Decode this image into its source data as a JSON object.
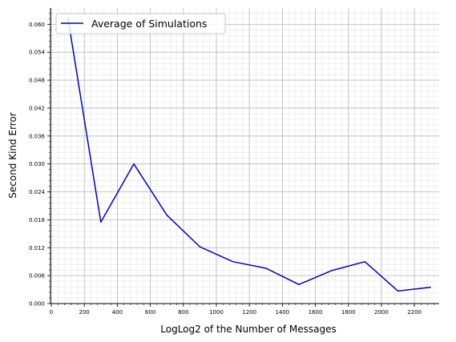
{
  "chart_data": {
    "type": "line",
    "xlabel": "LogLog2 of the Number of Messages",
    "ylabel": "Second Kind Error",
    "xlim": [
      -5,
      2350
    ],
    "ylim": [
      0,
      0.0635
    ],
    "x_ticks": [
      0,
      200,
      400,
      600,
      800,
      1000,
      1200,
      1400,
      1600,
      1800,
      2000,
      2200
    ],
    "x_tick_labels": [
      "0",
      "200",
      "400",
      "600",
      "800",
      "1000",
      "1200",
      "1400",
      "1600",
      "1800",
      "2000",
      "2200"
    ],
    "y_ticks": [
      0,
      0.006,
      0.012,
      0.018,
      0.024,
      0.03,
      0.036,
      0.042,
      0.048,
      0.054,
      0.06
    ],
    "y_tick_labels": [
      "0.000",
      "0.006",
      "0.012",
      "0.018",
      "0.024",
      "0.030",
      "0.036",
      "0.042",
      "0.048",
      "0.054",
      "0.060"
    ],
    "grid": true,
    "legend_position": "top-left",
    "series": [
      {
        "name": "Average of Simulations",
        "color": "#0000cc",
        "x": [
          100,
          300,
          500,
          700,
          900,
          1100,
          1300,
          1500,
          1700,
          1900,
          2100,
          2300
        ],
        "y": [
          0.0615,
          0.0175,
          0.03,
          0.019,
          0.0122,
          0.009,
          0.0076,
          0.0041,
          0.0071,
          0.009,
          0.0027,
          0.0035
        ]
      }
    ]
  }
}
